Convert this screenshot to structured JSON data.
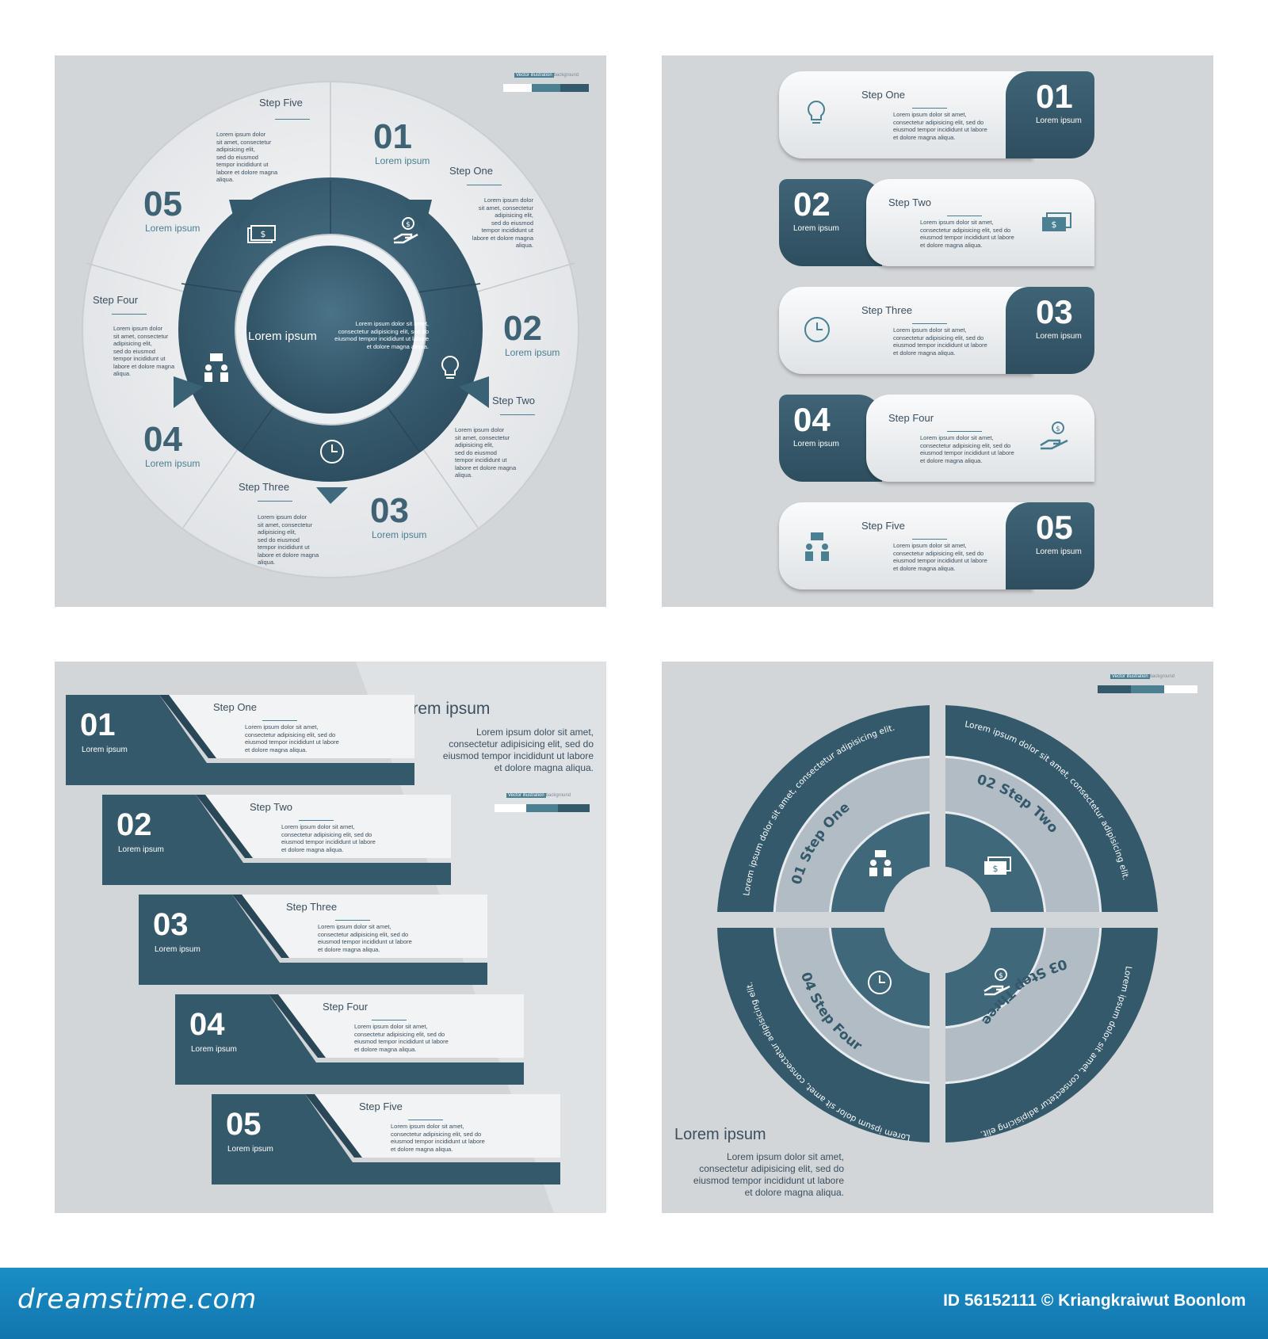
{
  "colors": {
    "dark": "#34596b",
    "mid": "#4b8093",
    "light": "#f0f2f3",
    "panel": "#d3d6d9",
    "footer": "#1782bd"
  },
  "legend_label": "Vector illustration",
  "legend_suffix": "background",
  "p1": {
    "center_title": "Lorem ipsum",
    "center_body": [
      "Lorem ipsum dolor sit amet,",
      "consectetur adipisicing elit, sed do",
      "eiusmod tempor incididunt ut labore",
      "et dolore magna aliqua."
    ],
    "steps": [
      {
        "num": "01",
        "sub": "Lorem ipsum",
        "title": "Step One",
        "body": [
          "Lorem ipsum dolor",
          "sit amet, consectetur",
          "adipisicing elit,",
          "sed do eiusmod",
          "tempor incididunt ut",
          "labore et dolore magna",
          "aliqua."
        ],
        "icon": "hand-coin-icon"
      },
      {
        "num": "02",
        "sub": "Lorem ipsum",
        "title": "Step Two",
        "body": [
          "Lorem ipsum dolor",
          "sit amet, consectetur",
          "adipisicing elit,",
          "sed do eiusmod",
          "tempor incididunt ut",
          "labore et dolore magna",
          "aliqua."
        ],
        "icon": "lightbulb-icon"
      },
      {
        "num": "03",
        "sub": "Lorem ipsum",
        "title": "Step Three",
        "body": [
          "Lorem ipsum dolor",
          "sit amet, consectetur",
          "adipisicing elit,",
          "sed do eiusmod",
          "tempor incididunt ut",
          "labore et dolore magna",
          "aliqua."
        ],
        "icon": "clock-icon"
      },
      {
        "num": "04",
        "sub": "Lorem ipsum",
        "title": "Step Four",
        "body": [
          "Lorem ipsum dolor",
          "sit amet, consectetur",
          "adipisicing elit,",
          "sed do eiusmod",
          "tempor incididunt ut",
          "labore et dolore magna",
          "aliqua."
        ],
        "icon": "meeting-icon"
      },
      {
        "num": "05",
        "sub": "Lorem ipsum",
        "title": "Step Five",
        "body": [
          "Lorem ipsum dolor",
          "sit amet, consectetur",
          "adipisicing elit,",
          "sed do eiusmod",
          "tempor incididunt ut",
          "labore et dolore magna",
          "aliqua."
        ],
        "icon": "money-icon"
      }
    ]
  },
  "p2": {
    "rows": [
      {
        "num": "01",
        "sub": "Lorem ipsum",
        "title": "Step One",
        "body": [
          "Lorem ipsum dolor sit amet,",
          "consectetur adipisicing elit, sed do",
          "eiusmod tempor incididunt ut labore",
          "et dolore magna aliqua."
        ],
        "icon": "lightbulb-icon"
      },
      {
        "num": "02",
        "sub": "Lorem ipsum",
        "title": "Step Two",
        "body": [
          "Lorem ipsum dolor sit amet,",
          "consectetur adipisicing elit, sed do",
          "eiusmod tempor incididunt ut labore",
          "et dolore magna aliqua."
        ],
        "icon": "money-icon"
      },
      {
        "num": "03",
        "sub": "Lorem ipsum",
        "title": "Step Three",
        "body": [
          "Lorem ipsum dolor sit amet,",
          "consectetur adipisicing elit, sed do",
          "eiusmod tempor incididunt ut labore",
          "et dolore magna aliqua."
        ],
        "icon": "clock-icon"
      },
      {
        "num": "04",
        "sub": "Lorem ipsum",
        "title": "Step Four",
        "body": [
          "Lorem ipsum dolor sit amet,",
          "consectetur adipisicing elit, sed do",
          "eiusmod tempor incididunt ut labore",
          "et dolore magna aliqua."
        ],
        "icon": "hand-coin-icon"
      },
      {
        "num": "05",
        "sub": "Lorem ipsum",
        "title": "Step Five",
        "body": [
          "Lorem ipsum dolor sit amet,",
          "consectetur adipisicing elit, sed do",
          "eiusmod tempor incididunt ut labore",
          "et dolore magna aliqua."
        ],
        "icon": "meeting-icon"
      }
    ]
  },
  "p3": {
    "heading": "Lorem ipsum",
    "heading_body": [
      "Lorem ipsum dolor sit amet,",
      "consectetur adipisicing elit, sed do",
      "eiusmod tempor incididunt ut labore",
      "et dolore magna aliqua."
    ],
    "rows": [
      {
        "num": "01",
        "sub": "Lorem ipsum",
        "title": "Step One",
        "body": [
          "Lorem ipsum dolor sit amet,",
          "consectetur adipisicing elit, sed do",
          "eiusmod tempor incididunt ut labore",
          "et dolore magna aliqua."
        ]
      },
      {
        "num": "02",
        "sub": "Lorem ipsum",
        "title": "Step Two",
        "body": [
          "Lorem ipsum dolor sit amet,",
          "consectetur adipisicing elit, sed do",
          "eiusmod tempor incididunt ut labore",
          "et dolore magna aliqua."
        ]
      },
      {
        "num": "03",
        "sub": "Lorem ipsum",
        "title": "Step Three",
        "body": [
          "Lorem ipsum dolor sit amet,",
          "consectetur adipisicing elit, sed do",
          "eiusmod tempor incididunt ut labore",
          "et dolore magna aliqua."
        ]
      },
      {
        "num": "04",
        "sub": "Lorem ipsum",
        "title": "Step Four",
        "body": [
          "Lorem ipsum dolor sit amet,",
          "consectetur adipisicing elit, sed do",
          "eiusmod tempor incididunt ut labore",
          "et dolore magna aliqua."
        ]
      },
      {
        "num": "05",
        "sub": "Lorem ipsum",
        "title": "Step Five",
        "body": [
          "Lorem ipsum dolor sit amet,",
          "consectetur adipisicing elit, sed do",
          "eiusmod tempor incididunt ut labore",
          "et dolore magna aliqua."
        ]
      }
    ]
  },
  "p4": {
    "heading": "Lorem ipsum",
    "heading_body": [
      "Lorem ipsum dolor sit amet,",
      "consectetur adipisicing elit, sed do",
      "eiusmod tempor incididunt ut labore",
      "et dolore magna aliqua."
    ],
    "arc_text": "Lorem ipsum dolor sit amet, consectetur adipisicing elit.",
    "quadrants": [
      {
        "label": "01  Step One",
        "icon": "meeting-icon"
      },
      {
        "label": "02  Step Two",
        "icon": "money-icon"
      },
      {
        "label": "03  Step Three",
        "icon": "hand-coin-icon"
      },
      {
        "label": "04  Step Four",
        "icon": "clock-icon"
      }
    ]
  },
  "footer": {
    "brand": "dreamstime.com",
    "credit": "ID 56152111 © Kriangkraiwut Boonlom"
  }
}
